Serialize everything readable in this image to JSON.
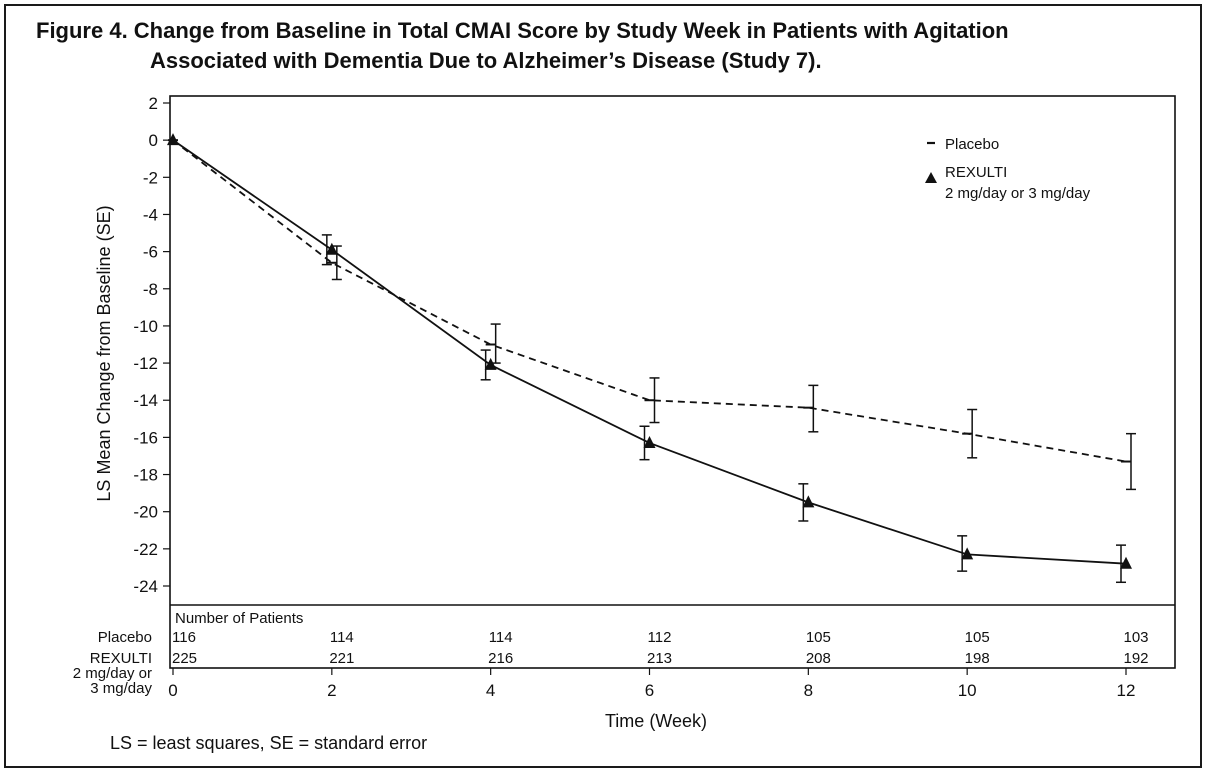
{
  "figure": {
    "title_line1": "Figure 4. Change from Baseline in Total CMAI Score by Study Week in Patients with Agitation",
    "title_line2": "Associated with Dementia Due to Alzheimer’s Disease (Study 7).",
    "footnote": "LS = least squares, SE = standard error"
  },
  "patients_table": {
    "header": "Number of Patients",
    "rows": [
      {
        "label": "Placebo",
        "label_lines": [
          "Placebo"
        ],
        "counts": [
          "116",
          "114",
          "114",
          "112",
          "105",
          "105",
          "103"
        ]
      },
      {
        "label": "REXULTI 2 mg/day or 3 mg/day",
        "label_lines": [
          "REXULTI",
          "2 mg/day or",
          "3 mg/day"
        ],
        "counts": [
          "225",
          "221",
          "216",
          "213",
          "208",
          "198",
          "192"
        ]
      }
    ]
  },
  "chart_data": {
    "type": "line",
    "xlabel": "Time (Week)",
    "ylabel": "LS Mean Change from Baseline (SE)",
    "xlim": [
      0,
      12
    ],
    "ylim": [
      -25,
      2
    ],
    "xticks": [
      0,
      2,
      4,
      6,
      8,
      10,
      12
    ],
    "yticks": [
      2,
      0,
      -2,
      -4,
      -6,
      -8,
      -10,
      -12,
      -14,
      -16,
      -18,
      -20,
      -22,
      -24
    ],
    "grid": false,
    "legend_position": "top-right",
    "x": [
      0,
      2,
      4,
      6,
      8,
      10,
      12
    ],
    "series": [
      {
        "name": "Placebo",
        "legend_lines": [
          "Placebo"
        ],
        "line_style": "dashed",
        "marker": "dash",
        "values": [
          0,
          -6.6,
          -11.0,
          -14.0,
          -14.4,
          -15.8,
          -17.3
        ],
        "error_low": [
          0,
          -7.5,
          -12.0,
          -15.2,
          -15.7,
          -17.1,
          -18.8
        ],
        "error_high": [
          0,
          -5.7,
          -9.9,
          -12.8,
          -13.2,
          -14.5,
          -15.8
        ]
      },
      {
        "name": "REXULTI 2 mg/day or 3 mg/day",
        "legend_lines": [
          "REXULTI",
          "2 mg/day or 3 mg/day"
        ],
        "line_style": "solid",
        "marker": "triangle",
        "values": [
          0,
          -5.9,
          -12.1,
          -16.3,
          -19.5,
          -22.3,
          -22.8
        ],
        "error_low": [
          0,
          -6.7,
          -12.9,
          -17.2,
          -20.5,
          -23.2,
          -23.8
        ],
        "error_high": [
          0,
          -5.1,
          -11.3,
          -15.4,
          -18.5,
          -21.3,
          -21.8
        ]
      }
    ]
  }
}
